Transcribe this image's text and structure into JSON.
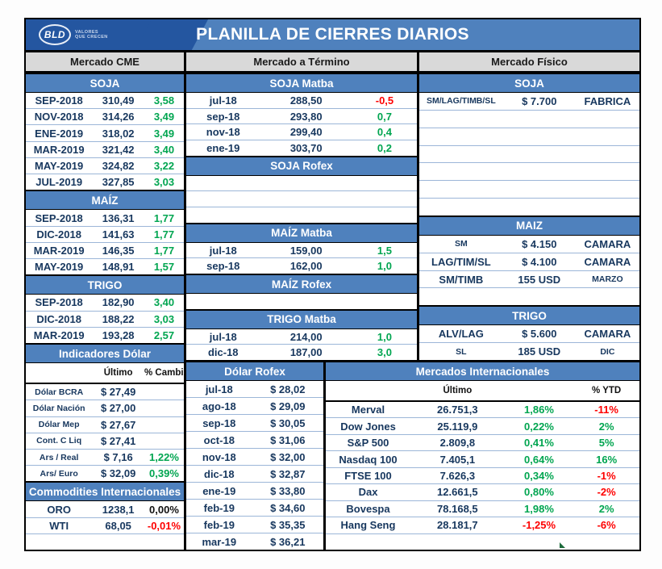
{
  "title": "PLANILLA DE CIERRES DIARIOS",
  "logo": {
    "text": "BLD",
    "tagline1": "VALORES",
    "tagline2": "QUE CRECEN"
  },
  "colors": {
    "header_blue": "#4f81bd",
    "logo_dark_blue": "#2456a0",
    "gray_header": "#d9d9d9",
    "navy_text": "#17375e",
    "positive_green": "#00a550",
    "negative_red": "#fe0000",
    "row_separator_blue": "#9cb6d8",
    "marker_green": "#1d6b3c"
  },
  "panels": {
    "cme": {
      "blocks": [
        {
          "b": "h",
          "t": "Mercado CME"
        },
        {
          "b": "s",
          "t": "SOJA"
        },
        {
          "b": "r",
          "c": [
            [
              "SEP-2018"
            ],
            [
              "310,49"
            ],
            [
              "3,58",
              "g"
            ]
          ]
        },
        {
          "b": "r",
          "c": [
            [
              "NOV-2018"
            ],
            [
              "314,26"
            ],
            [
              "3,49",
              "g"
            ]
          ]
        },
        {
          "b": "r",
          "c": [
            [
              "ENE-2019"
            ],
            [
              "318,02"
            ],
            [
              "3,49",
              "g"
            ]
          ]
        },
        {
          "b": "r",
          "c": [
            [
              "MAR-2019"
            ],
            [
              "321,42"
            ],
            [
              "3,40",
              "g"
            ]
          ]
        },
        {
          "b": "r",
          "c": [
            [
              "MAY-2019"
            ],
            [
              "324,82"
            ],
            [
              "3,22",
              "g"
            ]
          ]
        },
        {
          "b": "r",
          "c": [
            [
              "JUL-2019"
            ],
            [
              "327,85"
            ],
            [
              "3,03",
              "g"
            ]
          ]
        },
        {
          "b": "s",
          "t": "MAÍZ"
        },
        {
          "b": "r",
          "c": [
            [
              "SEP-2018"
            ],
            [
              "136,31"
            ],
            [
              "1,77",
              "g"
            ]
          ]
        },
        {
          "b": "r",
          "c": [
            [
              "DIC-2018"
            ],
            [
              "141,63"
            ],
            [
              "1,77",
              "g"
            ]
          ]
        },
        {
          "b": "r",
          "c": [
            [
              "MAR-2019"
            ],
            [
              "146,35"
            ],
            [
              "1,77",
              "g"
            ]
          ]
        },
        {
          "b": "r",
          "c": [
            [
              "MAY-2019"
            ],
            [
              "148,91"
            ],
            [
              "1,57",
              "g"
            ]
          ]
        },
        {
          "b": "s",
          "t": "TRIGO"
        },
        {
          "b": "r",
          "c": [
            [
              "SEP-2018"
            ],
            [
              "182,90"
            ],
            [
              "3,40",
              "g"
            ]
          ]
        },
        {
          "b": "r",
          "c": [
            [
              "DIC-2018"
            ],
            [
              "188,22"
            ],
            [
              "3,03",
              "g"
            ]
          ]
        },
        {
          "b": "r",
          "c": [
            [
              "MAR-2019"
            ],
            [
              "193,28"
            ],
            [
              "2,57",
              "g"
            ]
          ]
        },
        {
          "b": "s",
          "t": "Indicadores Dólar"
        },
        {
          "b": "sub",
          "c": [
            [
              "",
              ""
            ],
            [
              "Último",
              "k"
            ],
            [
              "% Cambio",
              "k"
            ]
          ]
        },
        {
          "b": "r",
          "c": [
            [
              "Dólar BCRA",
              "n",
              1
            ],
            [
              "$ 27,49"
            ],
            [
              "",
              ""
            ]
          ]
        },
        {
          "b": "r",
          "c": [
            [
              "Dólar Nación",
              "n",
              1
            ],
            [
              "$ 27,00"
            ],
            [
              "",
              ""
            ]
          ]
        },
        {
          "b": "r",
          "c": [
            [
              "Dólar Mep",
              "n",
              1
            ],
            [
              "$ 27,67"
            ],
            [
              "",
              ""
            ]
          ]
        },
        {
          "b": "r",
          "c": [
            [
              "Cont. C Liq",
              "n",
              1
            ],
            [
              "$ 27,41"
            ],
            [
              "",
              ""
            ]
          ]
        },
        {
          "b": "r",
          "c": [
            [
              "Ars / Real",
              "n",
              1
            ],
            [
              "$ 7,16"
            ],
            [
              "1,22%",
              "g"
            ]
          ]
        },
        {
          "b": "r",
          "c": [
            [
              "Ars/ Euro",
              "n",
              1
            ],
            [
              "$ 32,09"
            ],
            [
              "0,39%",
              "g"
            ]
          ]
        },
        {
          "b": "s",
          "t": "Commodities Internacionales"
        },
        {
          "b": "r",
          "c": [
            [
              "ORO"
            ],
            [
              "1238,1"
            ],
            [
              "0,00%",
              "k"
            ]
          ]
        },
        {
          "b": "r",
          "c": [
            [
              "WTI"
            ],
            [
              "68,05"
            ],
            [
              "-0,01%",
              "r"
            ]
          ]
        },
        {
          "b": "e"
        }
      ]
    },
    "term": {
      "blocks": [
        {
          "b": "h",
          "t": "Mercado a Término"
        },
        {
          "b": "s",
          "t": "SOJA Matba"
        },
        {
          "b": "r",
          "c": [
            [
              "jul-18"
            ],
            [
              "288,50"
            ],
            [
              "-0,5",
              "r"
            ]
          ]
        },
        {
          "b": "r",
          "c": [
            [
              "sep-18"
            ],
            [
              "293,80"
            ],
            [
              "0,7",
              "g"
            ]
          ]
        },
        {
          "b": "r",
          "c": [
            [
              "nov-18"
            ],
            [
              "299,40"
            ],
            [
              "0,4",
              "g"
            ]
          ]
        },
        {
          "b": "r",
          "c": [
            [
              "ene-19"
            ],
            [
              "303,70"
            ],
            [
              "0,2",
              "g"
            ]
          ]
        },
        {
          "b": "s",
          "t": "SOJA Rofex"
        },
        {
          "b": "e"
        },
        {
          "b": "e"
        },
        {
          "b": "e"
        },
        {
          "b": "s",
          "t": "MAÍZ Matba"
        },
        {
          "b": "r",
          "c": [
            [
              "jul-18"
            ],
            [
              "159,00"
            ],
            [
              "1,5",
              "g"
            ]
          ]
        },
        {
          "b": "r",
          "c": [
            [
              "sep-18"
            ],
            [
              "162,00"
            ],
            [
              "1,0",
              "g"
            ]
          ]
        },
        {
          "b": "s",
          "t": "MAÍZ Rofex"
        },
        {
          "b": "e"
        },
        {
          "b": "s",
          "t": "TRIGO Matba"
        },
        {
          "b": "r",
          "c": [
            [
              "jul-18"
            ],
            [
              "214,00"
            ],
            [
              "1,0",
              "g"
            ]
          ]
        },
        {
          "b": "r",
          "c": [
            [
              "dic-18"
            ],
            [
              "187,00"
            ],
            [
              "3,0",
              "g"
            ]
          ]
        }
      ]
    },
    "fis": {
      "blocks": [
        {
          "b": "h",
          "t": "Mercado Físico"
        },
        {
          "b": "s",
          "t": "SOJA"
        },
        {
          "b": "r",
          "c": [
            [
              "SM/LAG/TIMB/SL",
              "n",
              1
            ],
            [
              "$ 7.700"
            ],
            [
              "FABRICA"
            ]
          ]
        },
        {
          "b": "e"
        },
        {
          "b": "e"
        },
        {
          "b": "e"
        },
        {
          "b": "e"
        },
        {
          "b": "e"
        },
        {
          "b": "e"
        },
        {
          "b": "s",
          "t": "MAIZ"
        },
        {
          "b": "r",
          "c": [
            [
              "SM",
              "n",
              1
            ],
            [
              "$ 4.150"
            ],
            [
              "CAMARA"
            ]
          ]
        },
        {
          "b": "r",
          "c": [
            [
              "LAG/TIM/SL"
            ],
            [
              "$ 4.100"
            ],
            [
              "CAMARA"
            ]
          ]
        },
        {
          "b": "r",
          "c": [
            [
              "SM/TIMB"
            ],
            [
              "155 USD"
            ],
            [
              "MARZO",
              "n",
              1
            ]
          ]
        },
        {
          "b": "e"
        },
        {
          "b": "s",
          "t": "TRIGO"
        },
        {
          "b": "r",
          "c": [
            [
              "ALV/LAG"
            ],
            [
              "$ 5.600"
            ],
            [
              "CAMARA"
            ]
          ]
        },
        {
          "b": "r",
          "c": [
            [
              "SL",
              "n",
              1
            ],
            [
              "185 USD"
            ],
            [
              "DIC",
              "n",
              1
            ]
          ]
        }
      ]
    },
    "rofex": {
      "blocks": [
        {
          "b": "s",
          "t": "Dólar Rofex"
        },
        {
          "b": "r",
          "c": [
            [
              "jul-18"
            ],
            [
              "$ 28,02"
            ]
          ]
        },
        {
          "b": "r",
          "c": [
            [
              "ago-18"
            ],
            [
              "$ 29,09"
            ]
          ]
        },
        {
          "b": "r",
          "c": [
            [
              "sep-18"
            ],
            [
              "$ 30,05"
            ]
          ]
        },
        {
          "b": "r",
          "c": [
            [
              "oct-18"
            ],
            [
              "$ 31,06"
            ]
          ]
        },
        {
          "b": "r",
          "c": [
            [
              "nov-18"
            ],
            [
              "$ 32,00"
            ]
          ]
        },
        {
          "b": "r",
          "c": [
            [
              "dic-18"
            ],
            [
              "$ 32,87"
            ]
          ]
        },
        {
          "b": "r",
          "c": [
            [
              "ene-19"
            ],
            [
              "$ 33,80"
            ]
          ]
        },
        {
          "b": "r",
          "c": [
            [
              "feb-19"
            ],
            [
              "$ 34,60"
            ]
          ]
        },
        {
          "b": "r",
          "c": [
            [
              "feb-19"
            ],
            [
              "$ 35,35"
            ]
          ]
        },
        {
          "b": "r",
          "c": [
            [
              "mar-19"
            ],
            [
              "$ 36,21"
            ]
          ]
        }
      ]
    },
    "intl": {
      "blocks": [
        {
          "b": "s",
          "t": "Mercados Internacionales"
        },
        {
          "b": "sub",
          "c": [
            [
              "",
              ""
            ],
            [
              "Último",
              "k"
            ],
            [
              "",
              ""
            ],
            [
              "% YTD",
              "k"
            ]
          ]
        },
        {
          "b": "r",
          "c": [
            [
              "Merval"
            ],
            [
              "26.751,3"
            ],
            [
              "1,86%",
              "g"
            ],
            [
              "-11%",
              "r"
            ]
          ]
        },
        {
          "b": "r",
          "c": [
            [
              "Dow Jones"
            ],
            [
              "25.119,9"
            ],
            [
              "0,22%",
              "g"
            ],
            [
              "2%",
              "g"
            ]
          ]
        },
        {
          "b": "r",
          "c": [
            [
              "S&P 500"
            ],
            [
              "2.809,8"
            ],
            [
              "0,41%",
              "g"
            ],
            [
              "5%",
              "g"
            ]
          ]
        },
        {
          "b": "r",
          "c": [
            [
              "Nasdaq 100"
            ],
            [
              "7.405,1"
            ],
            [
              "0,64%",
              "g"
            ],
            [
              "16%",
              "g"
            ]
          ]
        },
        {
          "b": "r",
          "c": [
            [
              "FTSE 100"
            ],
            [
              "7.626,3"
            ],
            [
              "0,34%",
              "g"
            ],
            [
              "-1%",
              "r"
            ]
          ]
        },
        {
          "b": "r",
          "c": [
            [
              "Dax"
            ],
            [
              "12.661,5"
            ],
            [
              "0,80%",
              "g"
            ],
            [
              "-2%",
              "r"
            ]
          ]
        },
        {
          "b": "r",
          "c": [
            [
              "Bovespa"
            ],
            [
              "78.168,5"
            ],
            [
              "1,98%",
              "g"
            ],
            [
              "2%",
              "g"
            ]
          ]
        },
        {
          "b": "r",
          "c": [
            [
              "Hang Seng"
            ],
            [
              "28.181,7"
            ],
            [
              "-1,25%",
              "r"
            ],
            [
              "-6%",
              "r"
            ]
          ]
        },
        {
          "b": "e"
        }
      ]
    }
  }
}
